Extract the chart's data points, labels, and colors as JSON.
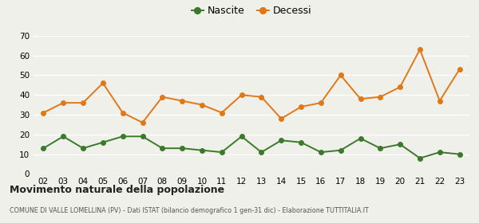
{
  "years": [
    "02",
    "03",
    "04",
    "05",
    "06",
    "07",
    "08",
    "09",
    "10",
    "11",
    "12",
    "13",
    "14",
    "15",
    "16",
    "17",
    "18",
    "19",
    "20",
    "21",
    "22",
    "23"
  ],
  "nascite": [
    13,
    19,
    13,
    16,
    19,
    19,
    13,
    13,
    12,
    11,
    19,
    11,
    17,
    16,
    11,
    12,
    18,
    13,
    15,
    8,
    11,
    10
  ],
  "decessi": [
    31,
    36,
    36,
    46,
    31,
    26,
    39,
    37,
    35,
    31,
    40,
    39,
    28,
    34,
    36,
    50,
    38,
    39,
    44,
    63,
    37,
    53
  ],
  "nascite_color": "#3a7a2a",
  "decessi_color": "#e07818",
  "ylim": [
    0,
    70
  ],
  "yticks": [
    0,
    10,
    20,
    30,
    40,
    50,
    60,
    70
  ],
  "title": "Movimento naturale della popolazione",
  "subtitle": "COMUNE DI VALLE LOMELLINA (PV) - Dati ISTAT (bilancio demografico 1 gen-31 dic) - Elaborazione TUTTITALIA.IT",
  "legend_nascite": "Nascite",
  "legend_decessi": "Decessi",
  "bg_color": "#f0f0eb",
  "marker_size": 4,
  "linewidth": 1.4
}
